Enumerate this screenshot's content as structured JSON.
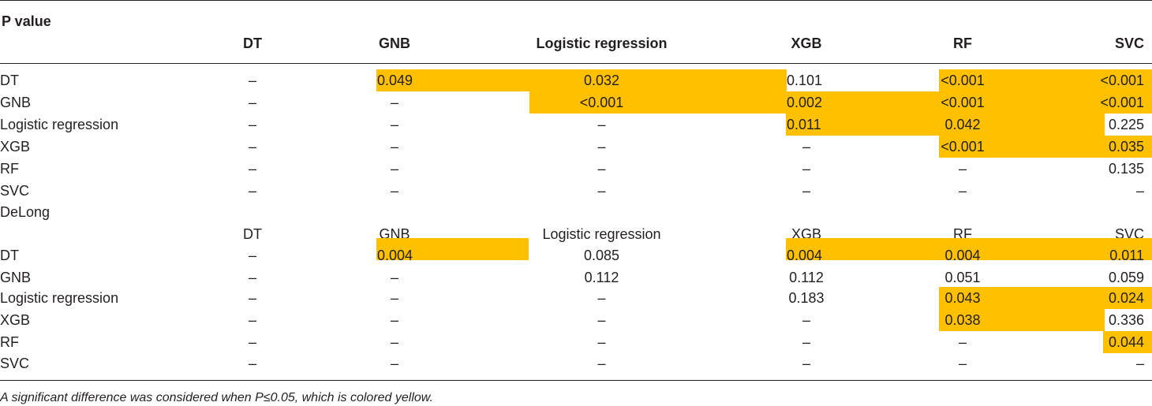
{
  "table": {
    "title": "P value",
    "section2_label": "DeLong",
    "header_pvalue": [
      "DT",
      "GNB",
      "Logistic regression",
      "XGB",
      "RF",
      "SVC"
    ],
    "header_delong": [
      "DT",
      "GNB",
      "Logistic regression",
      "XGB",
      "RF",
      "SVC"
    ],
    "rows_pvalue": [
      {
        "label": "DT",
        "cells": [
          "–",
          "0.049",
          "0.032",
          "0.101",
          "<0.001",
          "<0.001"
        ]
      },
      {
        "label": "GNB",
        "cells": [
          "–",
          "–",
          "<0.001",
          "0.002",
          "<0.001",
          "<0.001"
        ]
      },
      {
        "label": "Logistic regression",
        "cells": [
          "–",
          "–",
          "–",
          "0.011",
          "0.042",
          "0.225"
        ]
      },
      {
        "label": "XGB",
        "cells": [
          "–",
          "–",
          "–",
          "–",
          "<0.001",
          "0.035"
        ]
      },
      {
        "label": "RF",
        "cells": [
          "–",
          "–",
          "–",
          "–",
          "–",
          "0.135"
        ]
      },
      {
        "label": "SVC",
        "cells": [
          "–",
          "–",
          "–",
          "–",
          "–",
          "–"
        ]
      }
    ],
    "rows_delong": [
      {
        "label": "DT",
        "cells": [
          "–",
          "0.004",
          "0.085",
          "0.004",
          "0.004",
          "0.011"
        ]
      },
      {
        "label": "GNB",
        "cells": [
          "–",
          "–",
          "0.112",
          "0.112",
          "0.051",
          "0.059"
        ]
      },
      {
        "label": "Logistic regression",
        "cells": [
          "–",
          "–",
          "–",
          "0.183",
          "0.043",
          "0.024"
        ]
      },
      {
        "label": "XGB",
        "cells": [
          "–",
          "–",
          "–",
          "–",
          "0.038",
          "0.336"
        ]
      },
      {
        "label": "RF",
        "cells": [
          "–",
          "–",
          "–",
          "–",
          "–",
          "0.044"
        ]
      },
      {
        "label": "SVC",
        "cells": [
          "–",
          "–",
          "–",
          "–",
          "–",
          "–"
        ]
      }
    ],
    "highlight_color": "#ffc000"
  },
  "footnote": "A significant difference was considered when P≤0.05, which is colored yellow."
}
